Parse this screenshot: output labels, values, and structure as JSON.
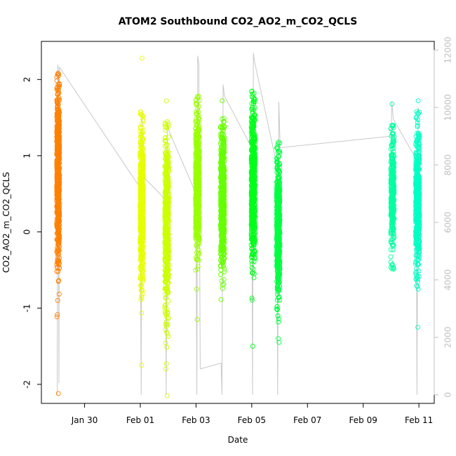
{
  "chart_data": {
    "type": "scatter",
    "title": "ATOM2 Southbound CO2_AO2_m_CO2_QCLS",
    "xlabel": "Date",
    "ylabel": "CO2_AO2_m_CO2_QCLS",
    "y2label": "",
    "x_ticks": [
      {
        "label": "Jan 30",
        "value": 30
      },
      {
        "label": "Feb 01",
        "value": 32
      },
      {
        "label": "Feb 03",
        "value": 34
      },
      {
        "label": "Feb 05",
        "value": 36
      },
      {
        "label": "Feb 07",
        "value": 38
      },
      {
        "label": "Feb 09",
        "value": 40
      },
      {
        "label": "Feb 11",
        "value": 42
      }
    ],
    "xlim": [
      28.45,
      42.55
    ],
    "ylim": [
      -2.25,
      2.5
    ],
    "y_ticks": [
      -2,
      -1,
      0,
      1,
      2
    ],
    "y2lim": [
      -300,
      12300
    ],
    "y2_ticks": [
      0,
      2000,
      4000,
      6000,
      8000,
      10000,
      12000
    ],
    "grid": false,
    "legend": "none",
    "colors": {
      "axis": "#000000",
      "secondary_axis": "#c0c0c0",
      "altitude_line": "#c8c8c8"
    },
    "series": [
      {
        "x_center": 29.05,
        "x_spread": 0.05,
        "y_min": -1.4,
        "y_max": 2.1,
        "y_mean": 0.75,
        "y_sd": 0.55,
        "outliers": [
          2.08,
          2.05,
          -2.12
        ],
        "color": "#ff8000",
        "count": 650
      },
      {
        "x_center": 32.05,
        "x_spread": 0.06,
        "y_min": -1.7,
        "y_max": 1.6,
        "y_mean": 0.35,
        "y_sd": 0.5,
        "outliers": [
          2.28,
          -1.75
        ],
        "color": "#e6ff00",
        "count": 550
      },
      {
        "x_center": 32.95,
        "x_spread": 0.07,
        "y_min": -1.85,
        "y_max": 1.5,
        "y_mean": 0.1,
        "y_sd": 0.55,
        "outliers": [
          1.72,
          -2.15,
          -1.8
        ],
        "color": "#ccff00",
        "count": 550
      },
      {
        "x_center": 34.05,
        "x_spread": 0.07,
        "y_min": -0.8,
        "y_max": 1.78,
        "y_mean": 0.6,
        "y_sd": 0.45,
        "outliers": [
          -1.15
        ],
        "color": "#99ff00",
        "count": 600
      },
      {
        "x_center": 34.95,
        "x_spread": 0.07,
        "y_min": -1.2,
        "y_max": 1.5,
        "y_mean": 0.45,
        "y_sd": 0.45,
        "outliers": [
          1.72
        ],
        "color": "#66ff00",
        "count": 600
      },
      {
        "x_center": 36.05,
        "x_spread": 0.07,
        "y_min": -1.1,
        "y_max": 1.88,
        "y_mean": 0.65,
        "y_sd": 0.5,
        "outliers": [
          -1.5
        ],
        "color": "#00ff1a",
        "count": 650
      },
      {
        "x_center": 36.95,
        "x_spread": 0.06,
        "y_min": -1.2,
        "y_max": 1.2,
        "y_mean": 0.05,
        "y_sd": 0.45,
        "outliers": [
          -1.4,
          -1.45
        ],
        "color": "#00ff40",
        "count": 550
      },
      {
        "x_center": 41.05,
        "x_spread": 0.06,
        "y_min": -0.5,
        "y_max": 1.4,
        "y_mean": 0.5,
        "y_sd": 0.4,
        "outliers": [
          1.68
        ],
        "color": "#00ffa0",
        "count": 300
      },
      {
        "x_center": 41.95,
        "x_spread": 0.07,
        "y_min": -1.0,
        "y_max": 1.6,
        "y_mean": 0.4,
        "y_sd": 0.45,
        "outliers": [
          1.72,
          -1.25
        ],
        "color": "#00ffc4",
        "count": 500
      }
    ],
    "altitude_path": [
      [
        29.02,
        0
      ],
      [
        29.04,
        11500
      ],
      [
        29.06,
        11200
      ],
      [
        29.08,
        400
      ],
      [
        29.1,
        11400
      ],
      [
        32.0,
        7200
      ],
      [
        32.03,
        0
      ],
      [
        32.06,
        9800
      ],
      [
        32.1,
        7600
      ],
      [
        32.9,
        6800
      ],
      [
        32.93,
        0
      ],
      [
        32.97,
        9500
      ],
      [
        33.02,
        9200
      ],
      [
        34.0,
        7000
      ],
      [
        34.03,
        0
      ],
      [
        34.06,
        11800
      ],
      [
        34.1,
        11500
      ],
      [
        34.15,
        900
      ],
      [
        34.9,
        1100
      ],
      [
        34.93,
        0
      ],
      [
        34.97,
        10800
      ],
      [
        35.02,
        10400
      ],
      [
        36.0,
        8600
      ],
      [
        36.03,
        0
      ],
      [
        36.06,
        11900
      ],
      [
        36.1,
        11600
      ],
      [
        36.9,
        8000
      ],
      [
        36.93,
        0
      ],
      [
        36.97,
        10200
      ],
      [
        37.02,
        8600
      ],
      [
        41.0,
        9000
      ],
      [
        41.03,
        10200
      ],
      [
        41.08,
        9600
      ],
      [
        41.9,
        8200
      ],
      [
        41.93,
        0
      ],
      [
        41.97,
        10000
      ],
      [
        42.02,
        9800
      ]
    ]
  }
}
